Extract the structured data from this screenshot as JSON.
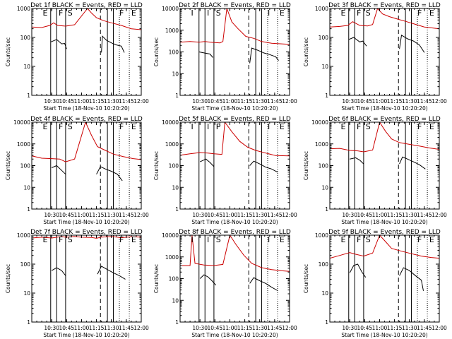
{
  "chart_data": {
    "type": "line",
    "layout": "3x3 grid",
    "y_scale": "log",
    "x_axis_label": "Start Time (18-Nov-10 10:20:20)",
    "y_axis_label": "Counts/sec",
    "x_range_minutes": [
      10,
      120
    ],
    "x_ticks": [
      "10:30",
      "10:45",
      "11:00",
      "11:15",
      "11:30",
      "11:45",
      "12:00"
    ],
    "x_tick_minutes": [
      30,
      45,
      60,
      75,
      90,
      105,
      120
    ],
    "colors": {
      "events": "#000000",
      "lld": "#cc0000"
    },
    "panels": [
      {
        "title": "Det 1f BLACK = Events, RED = LLD",
        "ylim": [
          1,
          1000
        ],
        "yticks": [
          "1",
          "10",
          "100",
          "1000"
        ],
        "markers": [
          "E",
          "F",
          "S",
          "F",
          "E"
        ],
        "red": [
          [
            10,
            230
          ],
          [
            20,
            220
          ],
          [
            28,
            260
          ],
          [
            32,
            320
          ],
          [
            36,
            260
          ],
          [
            44,
            245
          ],
          [
            53,
            275
          ],
          [
            66,
            1000
          ],
          [
            70,
            700
          ],
          [
            75,
            480
          ],
          [
            82,
            380
          ],
          [
            90,
            320
          ],
          [
            100,
            260
          ],
          [
            110,
            200
          ],
          [
            120,
            185
          ]
        ],
        "black": [
          [
            29,
            70
          ],
          [
            35,
            85
          ],
          [
            40,
            60
          ],
          [
            43,
            62
          ],
          [
            45,
            40
          ],
          [
            80,
            30
          ],
          [
            81,
            110
          ],
          [
            85,
            80
          ],
          [
            90,
            65
          ],
          [
            95,
            55
          ],
          [
            100,
            50
          ],
          [
            103,
            30
          ]
        ]
      },
      {
        "title": "Det 2f BLACK = Events, RED = LLD",
        "ylim": [
          1,
          10000
        ],
        "yticks": [
          "1",
          "10",
          "100",
          "1000",
          "10000"
        ],
        "markers": [
          "I",
          "I",
          "S",
          "I",
          "E"
        ],
        "red": [
          [
            10,
            280
          ],
          [
            20,
            300
          ],
          [
            29,
            280
          ],
          [
            35,
            300
          ],
          [
            40,
            280
          ],
          [
            50,
            260
          ],
          [
            53,
            300
          ],
          [
            57,
            10000
          ],
          [
            62,
            2400
          ],
          [
            68,
            1200
          ],
          [
            76,
            520
          ],
          [
            84,
            420
          ],
          [
            92,
            300
          ],
          [
            102,
            250
          ],
          [
            115,
            230
          ],
          [
            120,
            225
          ]
        ],
        "black": [
          [
            29,
            100
          ],
          [
            34,
            90
          ],
          [
            40,
            80
          ],
          [
            43,
            55
          ],
          [
            80,
            30
          ],
          [
            82,
            150
          ],
          [
            88,
            120
          ],
          [
            94,
            90
          ],
          [
            100,
            75
          ],
          [
            106,
            60
          ],
          [
            109,
            40
          ]
        ]
      },
      {
        "title": "Det 3f BLACK = Events, RED = LLD",
        "ylim": [
          1,
          1000
        ],
        "yticks": [
          "1",
          "10",
          "100",
          "1000"
        ],
        "markers": [
          "E",
          "F",
          "S",
          "F",
          "E"
        ],
        "red": [
          [
            10,
            230
          ],
          [
            20,
            240
          ],
          [
            28,
            260
          ],
          [
            33,
            350
          ],
          [
            40,
            260
          ],
          [
            48,
            250
          ],
          [
            53,
            280
          ],
          [
            58,
            1000
          ],
          [
            63,
            650
          ],
          [
            70,
            520
          ],
          [
            78,
            430
          ],
          [
            86,
            360
          ],
          [
            95,
            290
          ],
          [
            105,
            230
          ],
          [
            120,
            200
          ]
        ],
        "black": [
          [
            29,
            85
          ],
          [
            34,
            100
          ],
          [
            40,
            70
          ],
          [
            43,
            75
          ],
          [
            47,
            50
          ],
          [
            80,
            40
          ],
          [
            82,
            120
          ],
          [
            88,
            90
          ],
          [
            94,
            75
          ],
          [
            100,
            55
          ],
          [
            105,
            30
          ]
        ]
      },
      {
        "title": "Det 4f BLACK = Events, RED = LLD",
        "ylim": [
          1,
          10000
        ],
        "yticks": [
          "1",
          "10",
          "100",
          "1000",
          "10000"
        ],
        "markers": [
          "E",
          "F",
          "S",
          "F",
          "E"
        ],
        "red": [
          [
            10,
            280
          ],
          [
            20,
            220
          ],
          [
            30,
            210
          ],
          [
            38,
            200
          ],
          [
            44,
            150
          ],
          [
            53,
            200
          ],
          [
            64,
            10000
          ],
          [
            70,
            2500
          ],
          [
            76,
            750
          ],
          [
            84,
            500
          ],
          [
            92,
            340
          ],
          [
            102,
            260
          ],
          [
            112,
            210
          ],
          [
            120,
            190
          ]
        ],
        "black": [
          [
            30,
            80
          ],
          [
            35,
            100
          ],
          [
            40,
            60
          ],
          [
            44,
            40
          ],
          [
            75,
            40
          ],
          [
            79,
            90
          ],
          [
            84,
            70
          ],
          [
            90,
            55
          ],
          [
            96,
            40
          ],
          [
            101,
            20
          ]
        ]
      },
      {
        "title": "Det 5f BLACK = Events, RED = LLD",
        "ylim": [
          1,
          10000
        ],
        "yticks": [
          "1",
          "10",
          "100",
          "1000",
          "10000"
        ],
        "markers": [
          "I",
          "I",
          "P",
          "I",
          "E"
        ],
        "red": [
          [
            10,
            300
          ],
          [
            20,
            350
          ],
          [
            30,
            400
          ],
          [
            38,
            380
          ],
          [
            44,
            350
          ],
          [
            52,
            330
          ],
          [
            55,
            10000
          ],
          [
            62,
            3600
          ],
          [
            70,
            1300
          ],
          [
            78,
            700
          ],
          [
            86,
            500
          ],
          [
            96,
            380
          ],
          [
            106,
            290
          ],
          [
            120,
            280
          ]
        ],
        "black": [
          [
            30,
            150
          ],
          [
            36,
            200
          ],
          [
            40,
            140
          ],
          [
            44,
            90
          ],
          [
            80,
            100
          ],
          [
            84,
            160
          ],
          [
            90,
            120
          ],
          [
            96,
            85
          ],
          [
            102,
            70
          ],
          [
            108,
            50
          ]
        ]
      },
      {
        "title": "Det 6f BLACK = Events, RED = LLD",
        "ylim": [
          1,
          10000
        ],
        "yticks": [
          "1",
          "10",
          "100",
          "1000",
          "10000"
        ],
        "markers": [
          "E",
          "F",
          "S",
          "F",
          "E"
        ],
        "red": [
          [
            10,
            600
          ],
          [
            20,
            620
          ],
          [
            30,
            500
          ],
          [
            38,
            480
          ],
          [
            44,
            430
          ],
          [
            53,
            520
          ],
          [
            60,
            10000
          ],
          [
            66,
            3800
          ],
          [
            72,
            1700
          ],
          [
            80,
            1150
          ],
          [
            90,
            950
          ],
          [
            100,
            800
          ],
          [
            110,
            650
          ],
          [
            120,
            560
          ]
        ],
        "black": [
          [
            30,
            200
          ],
          [
            36,
            230
          ],
          [
            40,
            180
          ],
          [
            44,
            120
          ],
          [
            80,
            120
          ],
          [
            83,
            250
          ],
          [
            88,
            200
          ],
          [
            94,
            150
          ],
          [
            100,
            110
          ],
          [
            106,
            70
          ]
        ]
      },
      {
        "title": "Det 7f BLACK = Events, RED = LLD",
        "ylim": [
          1,
          1000
        ],
        "yticks": [
          "1",
          "10",
          "100",
          "1000"
        ],
        "markers": [
          "E",
          "F",
          "S",
          "F",
          "E"
        ],
        "red": [
          [
            10,
            800
          ],
          [
            20,
            850
          ],
          [
            30,
            800
          ],
          [
            40,
            900
          ],
          [
            44,
            850
          ],
          [
            53,
            900
          ],
          [
            60,
            850
          ],
          [
            70,
            830
          ],
          [
            75,
            780
          ],
          [
            80,
            860
          ],
          [
            90,
            900
          ],
          [
            100,
            820
          ],
          [
            110,
            880
          ],
          [
            120,
            860
          ]
        ],
        "black": [
          [
            30,
            60
          ],
          [
            35,
            75
          ],
          [
            40,
            60
          ],
          [
            44,
            40
          ],
          [
            76,
            45
          ],
          [
            80,
            85
          ],
          [
            86,
            65
          ],
          [
            92,
            50
          ],
          [
            98,
            40
          ],
          [
            104,
            30
          ]
        ]
      },
      {
        "title": "Det 8f BLACK = Events, RED = LLD",
        "ylim": [
          1,
          10000
        ],
        "yticks": [
          "1",
          "10",
          "100",
          "1000",
          "10000"
        ],
        "markers": [
          "I",
          "I",
          "S",
          "I",
          "E"
        ],
        "red": [
          [
            10,
            400
          ],
          [
            20,
            400
          ],
          [
            22,
            10000
          ],
          [
            25,
            500
          ],
          [
            34,
            420
          ],
          [
            44,
            400
          ],
          [
            53,
            450
          ],
          [
            60,
            10000
          ],
          [
            66,
            3800
          ],
          [
            74,
            1200
          ],
          [
            82,
            500
          ],
          [
            92,
            320
          ],
          [
            102,
            260
          ],
          [
            112,
            230
          ],
          [
            120,
            215
          ]
        ],
        "black": [
          [
            30,
            100
          ],
          [
            34,
            150
          ],
          [
            38,
            120
          ],
          [
            42,
            80
          ],
          [
            46,
            50
          ],
          [
            80,
            60
          ],
          [
            84,
            110
          ],
          [
            90,
            80
          ],
          [
            96,
            60
          ],
          [
            102,
            40
          ],
          [
            108,
            28
          ]
        ]
      },
      {
        "title": "Det 9f BLACK = Events, RED = LLD",
        "ylim": [
          1,
          1000
        ],
        "yticks": [
          "1",
          "10",
          "100",
          "1000"
        ],
        "markers": [
          "E",
          "F",
          "S",
          "F",
          "E"
        ],
        "red": [
          [
            10,
            160
          ],
          [
            20,
            200
          ],
          [
            30,
            250
          ],
          [
            36,
            220
          ],
          [
            44,
            190
          ],
          [
            53,
            240
          ],
          [
            60,
            1000
          ],
          [
            66,
            600
          ],
          [
            72,
            350
          ],
          [
            82,
            280
          ],
          [
            92,
            230
          ],
          [
            102,
            190
          ],
          [
            112,
            170
          ],
          [
            120,
            160
          ]
        ],
        "black": [
          [
            30,
            50
          ],
          [
            34,
            90
          ],
          [
            38,
            100
          ],
          [
            42,
            55
          ],
          [
            46,
            35
          ],
          [
            80,
            40
          ],
          [
            84,
            75
          ],
          [
            90,
            60
          ],
          [
            96,
            40
          ],
          [
            102,
            28
          ],
          [
            104,
            12
          ]
        ]
      }
    ]
  }
}
